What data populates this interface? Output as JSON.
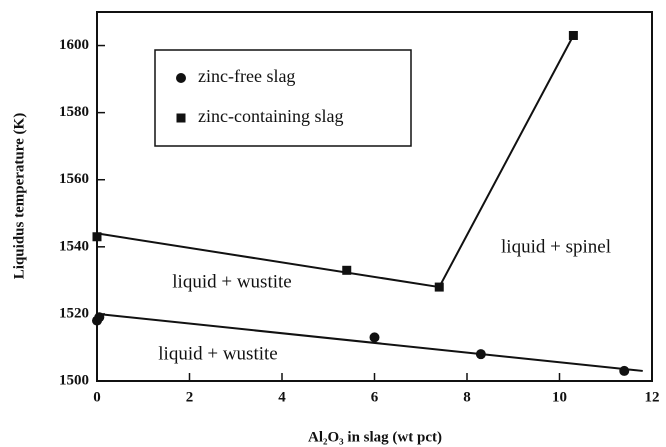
{
  "chart_data": {
    "type": "scatter",
    "xlabel": "Al₂O₃ in slag (wt pct)",
    "ylabel": "Liquidus temperature (K)",
    "xlim": [
      0,
      12
    ],
    "xticks": [
      0,
      2,
      4,
      6,
      8,
      10,
      12
    ],
    "ylim": [
      1500,
      1610
    ],
    "yticks": [
      1500,
      1520,
      1540,
      1560,
      1580,
      1600
    ],
    "series": [
      {
        "name": "zinc-free slag",
        "marker": "circle",
        "color": "#111111",
        "x": [
          0,
          0.05,
          6,
          8.3,
          11.4
        ],
        "values": [
          1518,
          1519,
          1513,
          1508,
          1503
        ]
      },
      {
        "name": "zinc-containing slag",
        "marker": "square",
        "color": "#111111",
        "x": [
          0,
          5.4,
          7.4,
          10.3
        ],
        "values": [
          1543,
          1533,
          1528,
          1603
        ]
      }
    ],
    "fit_lines": [
      {
        "x": [
          0,
          11.8
        ],
        "values": [
          1520,
          1503
        ]
      },
      {
        "x": [
          0,
          7.4,
          10.3
        ],
        "values": [
          1544,
          1528,
          1603
        ]
      }
    ],
    "annotations": [
      "liquid + wustite",
      "liquid + wustite",
      "liquid + spinel"
    ]
  }
}
